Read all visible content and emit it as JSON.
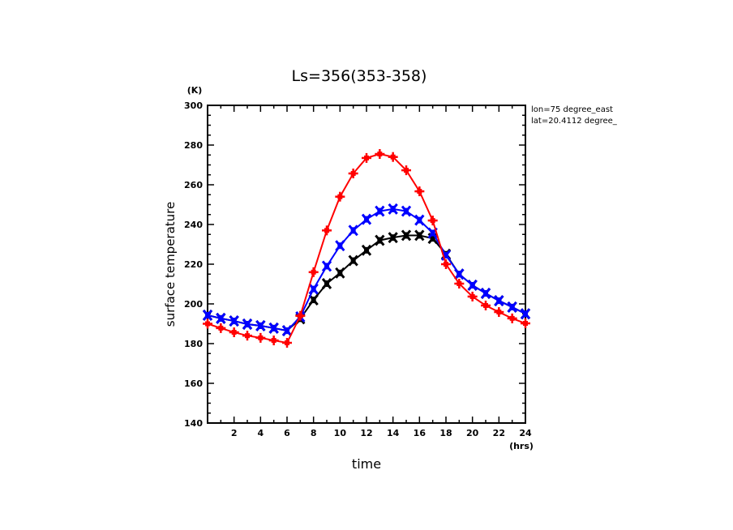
{
  "chart_data": {
    "type": "line",
    "title": "Ls=356(353-358)",
    "xlabel": "time",
    "ylabel": "surface temperature",
    "x_unit": "(hrs)",
    "y_unit": "(K)",
    "xlim": [
      0,
      24
    ],
    "ylim": [
      140,
      300
    ],
    "xticks": [
      2,
      4,
      6,
      8,
      10,
      12,
      14,
      16,
      18,
      20,
      22,
      24
    ],
    "yticks": [
      140,
      160,
      180,
      200,
      220,
      240,
      260,
      280,
      300
    ],
    "annotations": [
      "lon=75 degree_east",
      "lat=20.4112 degree_"
    ],
    "x": [
      0,
      1,
      2,
      3,
      4,
      5,
      6,
      7,
      8,
      9,
      10,
      11,
      12,
      13,
      14,
      15,
      16,
      17,
      18,
      19,
      20,
      21,
      22,
      23,
      24
    ],
    "series": [
      {
        "name": "black",
        "color": "#000000",
        "marker": "x",
        "values": [
          194.3,
          192.7,
          191.4,
          189.8,
          189.0,
          187.8,
          186.5,
          192.5,
          202,
          210.2,
          215.6,
          221.8,
          227,
          232,
          233.4,
          234.5,
          234.5,
          233,
          225,
          215,
          209.4,
          205.3,
          201.6,
          198.4,
          195
        ]
      },
      {
        "name": "blue",
        "color": "#0000ff",
        "marker": "x",
        "values": [
          194.3,
          192.7,
          191.4,
          189.8,
          189.0,
          187.8,
          186.5,
          193.5,
          207.5,
          219,
          229.3,
          237,
          242.6,
          246.7,
          247.8,
          246.7,
          242.2,
          235.7,
          224.5,
          215,
          209.4,
          205.3,
          201.6,
          198.4,
          195
        ]
      },
      {
        "name": "red",
        "color": "#ff0000",
        "marker": "+",
        "values": [
          190,
          187.8,
          185.7,
          184,
          182.9,
          181.6,
          180.4,
          194,
          216,
          237,
          254,
          265.7,
          273.5,
          275.5,
          274,
          267.3,
          256.7,
          242,
          220,
          210.2,
          203.7,
          199.2,
          195.9,
          192.7,
          190.2
        ]
      }
    ]
  }
}
